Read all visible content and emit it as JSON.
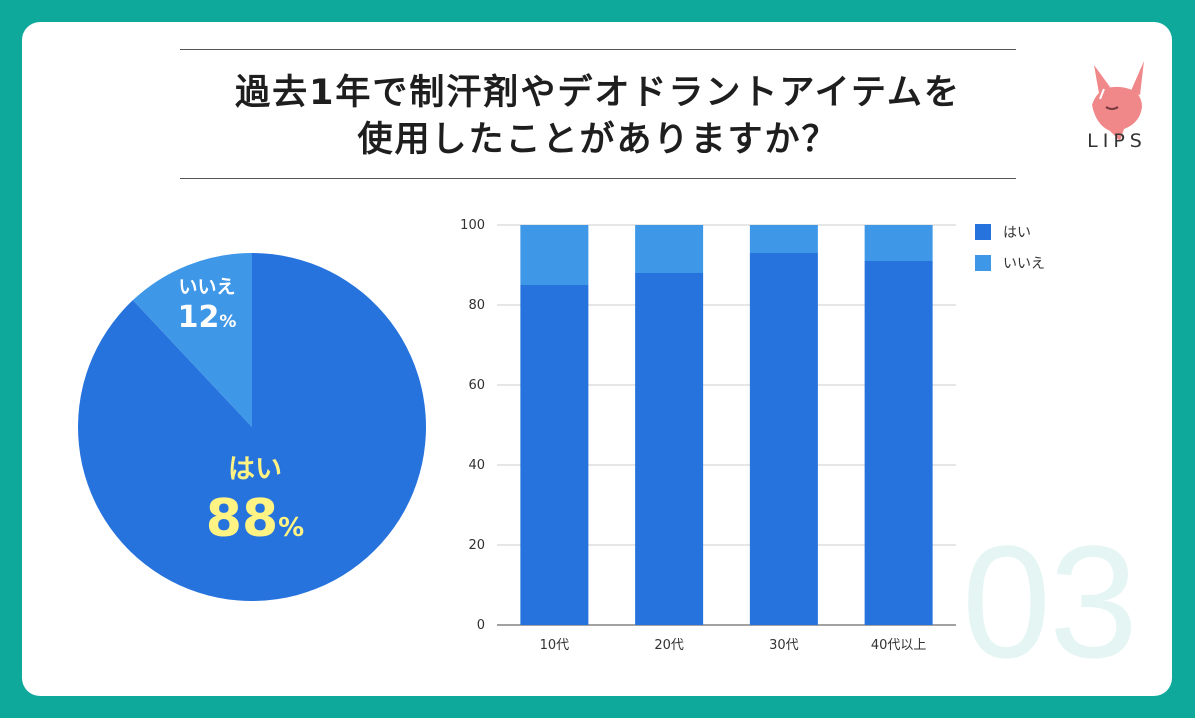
{
  "title": {
    "line1": "過去1年で制汗剤やデオドラントアイテムを",
    "line2": "使用したことがありますか？"
  },
  "brand": {
    "name": "LIPS"
  },
  "watermark": "03",
  "colors": {
    "background": "#0fa99c",
    "yes": "#2673dd",
    "no": "#3f97e8",
    "pie_text_yes": "#fff483",
    "pie_text_no": "#ffffff"
  },
  "chart_data": [
    {
      "type": "pie",
      "slices": [
        {
          "name": "はい",
          "value": 88,
          "label": "88",
          "unit": "%"
        },
        {
          "name": "いいえ",
          "value": 12,
          "label": "12",
          "unit": "%"
        }
      ]
    },
    {
      "type": "bar",
      "stacked": true,
      "categories": [
        "10代",
        "20代",
        "30代",
        "40代以上"
      ],
      "series": [
        {
          "name": "はい",
          "values": [
            85,
            88,
            93,
            91
          ]
        },
        {
          "name": "いいえ",
          "values": [
            15,
            12,
            7,
            9
          ]
        }
      ],
      "ylim": [
        0,
        100
      ],
      "yticks": [
        "0",
        "20",
        "40",
        "60",
        "80",
        "100"
      ],
      "legend": "right"
    }
  ]
}
